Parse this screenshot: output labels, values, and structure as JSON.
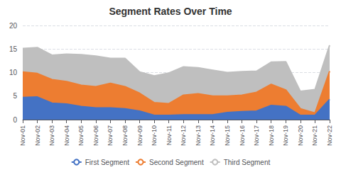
{
  "chart_data": {
    "type": "area",
    "title": "Segment Rates Over Time",
    "categories": [
      "Nov-01",
      "Nov-02",
      "Nov-03",
      "Nov-04",
      "Nov-05",
      "Nov-06",
      "Nov-07",
      "Nov-08",
      "Nov-09",
      "Nov-10",
      "Nov-11",
      "Nov-12",
      "Nov-13",
      "Nov-14",
      "Nov-15",
      "Nov-16",
      "Nov-17",
      "Nov-18",
      "Nov-19",
      "Nov-20",
      "Nov-21",
      "Nov-22"
    ],
    "series": [
      {
        "name": "First Segment",
        "color": "#4472C4",
        "values": [
          4.7,
          4.8,
          3.5,
          3.3,
          2.8,
          2.5,
          2.5,
          2.3,
          1.8,
          0.9,
          0.9,
          1.0,
          1.0,
          1.0,
          1.5,
          1.7,
          1.8,
          3.0,
          2.8,
          0.9,
          0.9,
          4.3
        ]
      },
      {
        "name": "Second Segment",
        "color": "#ED7D31",
        "values": [
          5.4,
          5.0,
          5.0,
          4.8,
          4.5,
          4.5,
          5.2,
          4.7,
          3.8,
          2.7,
          2.5,
          4.2,
          4.5,
          4.0,
          3.5,
          3.5,
          4.0,
          4.5,
          3.5,
          1.4,
          0.5,
          6.0
        ]
      },
      {
        "name": "Third Segment",
        "color": "#BFBFBF",
        "values": [
          5.0,
          5.5,
          5.2,
          5.8,
          6.5,
          6.5,
          5.3,
          6.0,
          4.5,
          5.7,
          6.5,
          6.0,
          5.5,
          5.5,
          5.0,
          5.0,
          4.5,
          4.7,
          6.0,
          3.7,
          5.0,
          5.5
        ]
      }
    ],
    "stacked": true,
    "ylim": [
      0,
      20
    ],
    "yticks": [
      0,
      5,
      10,
      15,
      20
    ],
    "grid": true,
    "legend": "bottom"
  }
}
